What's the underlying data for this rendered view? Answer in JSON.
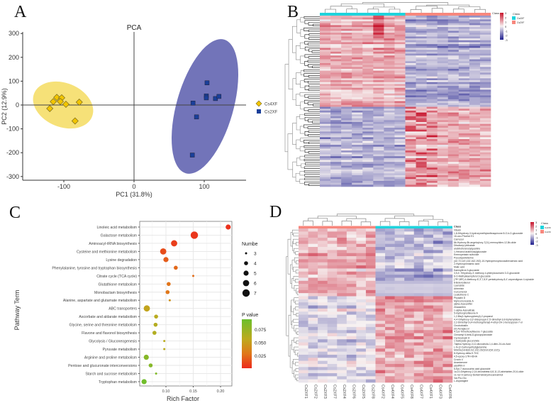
{
  "panels": {
    "a": "A",
    "b": "B",
    "c": "C",
    "d": "D"
  },
  "chart_data": [
    {
      "type": "scatter",
      "panel": "A",
      "title": "PCA",
      "xlabel": "PC1 (31.8%)",
      "ylabel": "PC2 (12.9%)",
      "xticks": [
        "-100",
        "0",
        "100"
      ],
      "yticks": [
        "300",
        "200",
        "100",
        "0",
        "-100",
        "-200",
        "-300"
      ],
      "xlim": [
        -160,
        160
      ],
      "ylim": [
        -315,
        305
      ],
      "series": [
        {
          "name": "Cs4XF",
          "color": "#f2c500",
          "ellipse_color": "#f5dc60",
          "marker": "diamond",
          "points": [
            [
              -110,
              32
            ],
            [
              -115,
              14
            ],
            [
              -103,
              30
            ],
            [
              -105,
              15
            ],
            [
              -97,
              3
            ],
            [
              -78,
              12
            ],
            [
              -120,
              -15
            ],
            [
              -84,
              -67
            ]
          ]
        },
        {
          "name": "Cs2XF",
          "color": "#1a3f9a",
          "ellipse_color": "#6a6db5",
          "marker": "square",
          "points": [
            [
              104,
              93
            ],
            [
              103,
              38
            ],
            [
              103,
              30
            ],
            [
              116,
              27
            ],
            [
              121,
              36
            ],
            [
              84,
              8
            ],
            [
              89,
              -50
            ],
            [
              83,
              -210
            ]
          ]
        }
      ]
    },
    {
      "type": "heatmap",
      "panel": "B",
      "color_scale": {
        "ticks": [
          "3",
          "2",
          "1",
          "0",
          "-1",
          "-2",
          "-3"
        ],
        "low": "#1f1f8f",
        "mid": "#f7f2f2",
        "high": "#c8142c"
      },
      "legend_title": "Class",
      "classes": [
        {
          "name": "Cs4XF",
          "color": "#1fd3dc"
        },
        {
          "name": "Cs2XF",
          "color": "#f7877d"
        }
      ],
      "n_columns": 16
    },
    {
      "type": "scatter",
      "panel": "C",
      "xlabel": "Rich Factor",
      "ylabel": "Pathway Term",
      "xticks": [
        "0.10",
        "0.15",
        "0.20"
      ],
      "xlim": [
        0.052,
        0.221
      ],
      "size_legend_title": "Numbe",
      "size_levels": [
        3,
        4,
        5,
        6,
        7
      ],
      "color_legend_title": "P value",
      "color_ticks": [
        "0.075",
        "0.050",
        "0.025"
      ],
      "color_range": [
        0.001,
        0.09
      ],
      "grid": true,
      "terms": [
        {
          "name": "Linoleic acid metabolism",
          "rich_factor": 0.214,
          "number": 5,
          "p": 0.003
        },
        {
          "name": "Galactose metabolism",
          "rich_factor": 0.152,
          "number": 7,
          "p": 0.005
        },
        {
          "name": "Aminoacyl-tRNA biosynthesis",
          "rich_factor": 0.115,
          "number": 6,
          "p": 0.008
        },
        {
          "name": "Cysteine and methionine metabolism",
          "rich_factor": 0.095,
          "number": 6,
          "p": 0.014
        },
        {
          "name": "Lysine degradation",
          "rich_factor": 0.1,
          "number": 5,
          "p": 0.02
        },
        {
          "name": "Phenylalanine, tyrosine and tryptophan biosynthesis",
          "rich_factor": 0.118,
          "number": 4,
          "p": 0.025
        },
        {
          "name": "Citrate cycle (TCA cycle)",
          "rich_factor": 0.15,
          "number": 3,
          "p": 0.027
        },
        {
          "name": "Glutathione metabolism",
          "rich_factor": 0.105,
          "number": 4,
          "p": 0.03
        },
        {
          "name": "Monobactam biosynthesis",
          "rich_factor": 0.103,
          "number": 4,
          "p": 0.031
        },
        {
          "name": "Alanine, aspartate and glutamate metabolism",
          "rich_factor": 0.107,
          "number": 3,
          "p": 0.045
        },
        {
          "name": "ABC transporters",
          "rich_factor": 0.065,
          "number": 6,
          "p": 0.055
        },
        {
          "name": "Ascorbate and aldarate metabolism",
          "rich_factor": 0.082,
          "number": 4,
          "p": 0.06
        },
        {
          "name": "Glycine, serine and threonine metabolism",
          "rich_factor": 0.081,
          "number": 4,
          "p": 0.062
        },
        {
          "name": "Flavone and flavonol biosynthesis",
          "rich_factor": 0.079,
          "number": 4,
          "p": 0.063
        },
        {
          "name": "Glycolysis / Gluconeogenesis",
          "rich_factor": 0.097,
          "number": 3,
          "p": 0.06
        },
        {
          "name": "Pyruvate metabolism",
          "rich_factor": 0.097,
          "number": 3,
          "p": 0.06
        },
        {
          "name": "Arginine and proline metabolism",
          "rich_factor": 0.064,
          "number": 5,
          "p": 0.08
        },
        {
          "name": "Pentose and glucuronate interconversions",
          "rich_factor": 0.072,
          "number": 4,
          "p": 0.08
        },
        {
          "name": "Starch and sucrose metabolism",
          "rich_factor": 0.082,
          "number": 3,
          "p": 0.082
        },
        {
          "name": "Tryptophan metabolism",
          "rich_factor": 0.06,
          "number": 5,
          "p": 0.088
        }
      ]
    },
    {
      "type": "heatmap",
      "panel": "D",
      "annotation_label": "Class",
      "legend_title": "Class",
      "classes": [
        {
          "name": "Cs4XF",
          "color": "#1fd3dc"
        },
        {
          "name": "Cs2XF",
          "color": "#f7877d"
        }
      ],
      "color_scale": {
        "ticks": [
          "3",
          "2",
          "1",
          "0",
          "-1",
          "-2",
          "-3"
        ],
        "low": "#1f1f8f",
        "mid": "#f7f2f2",
        "high": "#c8142c"
      },
      "columns": [
        "Cs2XF1",
        "Cs2XF2",
        "Cs2XF3",
        "Cs2XF7",
        "Cs2XF4",
        "Cs2XF6",
        "Cs2XF5",
        "Cs2XF8",
        "Cs4XF2",
        "Cs4XF4",
        "Cs4XF5",
        "Cs4XF8",
        "Cs4XF7",
        "Cs4XF1",
        "Cs4XF3",
        "Cs4XF6"
      ],
      "rows": [
        "Vitexin",
        "1,8-Dihydroxy-3-hydroxymethylanthraquinone 8-O-b-D-glucoside",
        "16-oxo-Phorbol E1",
        "Carnosol",
        "8b-Hydroxy-8b-angeloyloxy-7(11)-eremophilen-12,8b-olide",
        "Diisobutyl phthalate",
        "arabinofuranosylguanine",
        "1-Hexanol arabinosylglucoside",
        "Eremopetasin sulfoxide",
        "Pseudopelletierine",
        "(4Z,7Z,11E,13Z,16Z,19Z)-10-Hydroperoxydocosahexaenoic acid",
        "2-Hydroxycinnamic acid",
        "Malic acid",
        "Kaempferol-3-glucoside",
        "3,5,4'-Trihydroxy-3'-methoxy-4-phenylcoumarin 3-O-glucoside",
        "6-O-Methylkaempferol 3-glucoside",
        "(7R*,8R*)-4-Methoxy-8',3',7,8,9'-pentahydroxy-8,4'-oxyneolignan 4-xyloside",
        "8-Bolenodienol",
        "Lauroside",
        "Artemisin",
        "Curcumenol",
        "Leukotriene C",
        "Physalin D",
        "Myricomonoside A",
        "alpha-Zeaxanthin",
        "Zeaxanthin",
        "1-alpha-Acevaltrate",
        "5-Hydroxyisoflavone A",
        "1,2-Bis(4-hydroxyphenyl)-2-propanol",
        "4,4'-Dihydroxy-3,3'-diisopropyl-2',5'-dimethyl-3,6-biphenyldione",
        "2,2-Dimethyl-3-(4-methoxyphenyl)-4-ethyl-2H-1-benzopyran-7-ol",
        "Cinobufotalin",
        "(S)-Acraglucol",
        "4',5,6-Trimethoxyflavone 7-glucoside",
        "Cinnamyl 6-beta-D-glucopyranoside",
        "Cyclocalopin A",
        "1-Salicylate glucuronide",
        "7alpha-Hydroxy-3,12-dioxochola-1,4-dien-24-oic Acid",
        "L-N-(2-Carboxyethyl)glutamine",
        "MGDG(18:4(6Z,9Z,12Z,15Z)/18:2(9Z,12Z))",
        "8-Hydroxy-delta-9-THC",
        "4,5-epoxy-17R-HDHA",
        "Crocin 4",
        "Anastomone",
        "pipoffitin II",
        "6-Epi-7-isocucurbic acid glucoside",
        "1a,10-Dihydroxy-2,14-dinorabieta-6,8,11,13-abietatrien-20,6-olide",
        "11-nor-9-carboxy-Delta9-tetrahydrocannabinol",
        "Val-Pro-Glu",
        "L-Asparagine"
      ]
    }
  ]
}
